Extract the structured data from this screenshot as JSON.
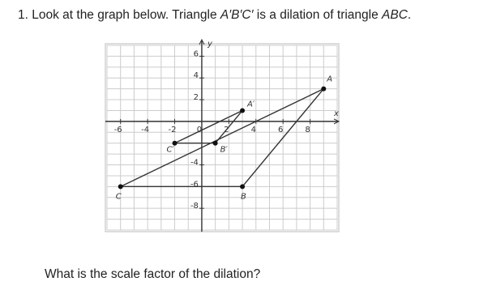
{
  "question": {
    "parts": [
      "1. Look at the graph below. Triangle ",
      "A′B′C′",
      " is a dilation of triangle ",
      "ABC",
      "."
    ]
  },
  "graph": {
    "x_label": "x",
    "y_label": "y",
    "xlim": [
      -7,
      10
    ],
    "ylim": [
      -10,
      7
    ],
    "xticks": [
      -6,
      -4,
      -2,
      0,
      2,
      4,
      6,
      8
    ],
    "yticks": [
      -8,
      -6,
      -4,
      2,
      4,
      6
    ],
    "points": [
      {
        "label": "A",
        "x": 9,
        "y": 3
      },
      {
        "label": "B",
        "x": 3,
        "y": -6
      },
      {
        "label": "C",
        "x": -6,
        "y": -6
      },
      {
        "label": "A′",
        "x": 3,
        "y": 1
      },
      {
        "label": "B′",
        "x": 1,
        "y": -2
      },
      {
        "label": "C′",
        "x": -2,
        "y": -2
      }
    ]
  },
  "prompt": "What is the scale factor of the dilation?"
}
